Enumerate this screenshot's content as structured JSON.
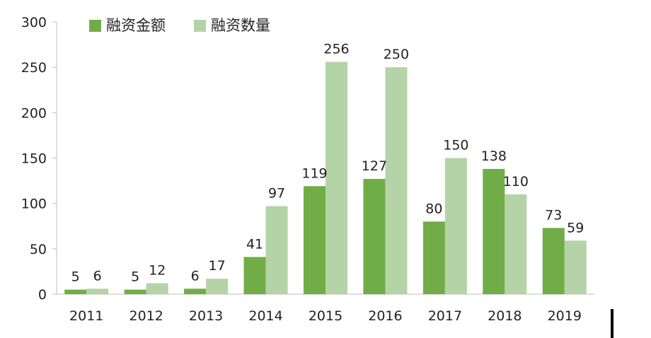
{
  "chart_data": {
    "type": "bar",
    "categories": [
      "2011",
      "2012",
      "2013",
      "2014",
      "2015",
      "2016",
      "2017",
      "2018",
      "2019"
    ],
    "series": [
      {
        "name": "融资金额",
        "color": "#70ad47",
        "values": [
          5,
          5,
          6,
          41,
          119,
          127,
          80,
          138,
          73
        ]
      },
      {
        "name": "融资数量",
        "color": "#b4d3a6",
        "values": [
          6,
          12,
          17,
          97,
          256,
          250,
          150,
          110,
          59
        ]
      }
    ],
    "data_labels": [
      [
        "5",
        "5",
        "6",
        "41",
        "119",
        "127",
        "80",
        "138",
        "73"
      ],
      [
        "6",
        "12",
        "17",
        "97",
        "256",
        "250",
        "150",
        "110",
        "59"
      ]
    ],
    "ylim": [
      0,
      300
    ],
    "yticks": [
      "0",
      "50",
      "100",
      "150",
      "200",
      "250",
      "300"
    ],
    "grid": false,
    "legend_position": "top-left",
    "title": "",
    "xlabel": "",
    "ylabel": ""
  }
}
